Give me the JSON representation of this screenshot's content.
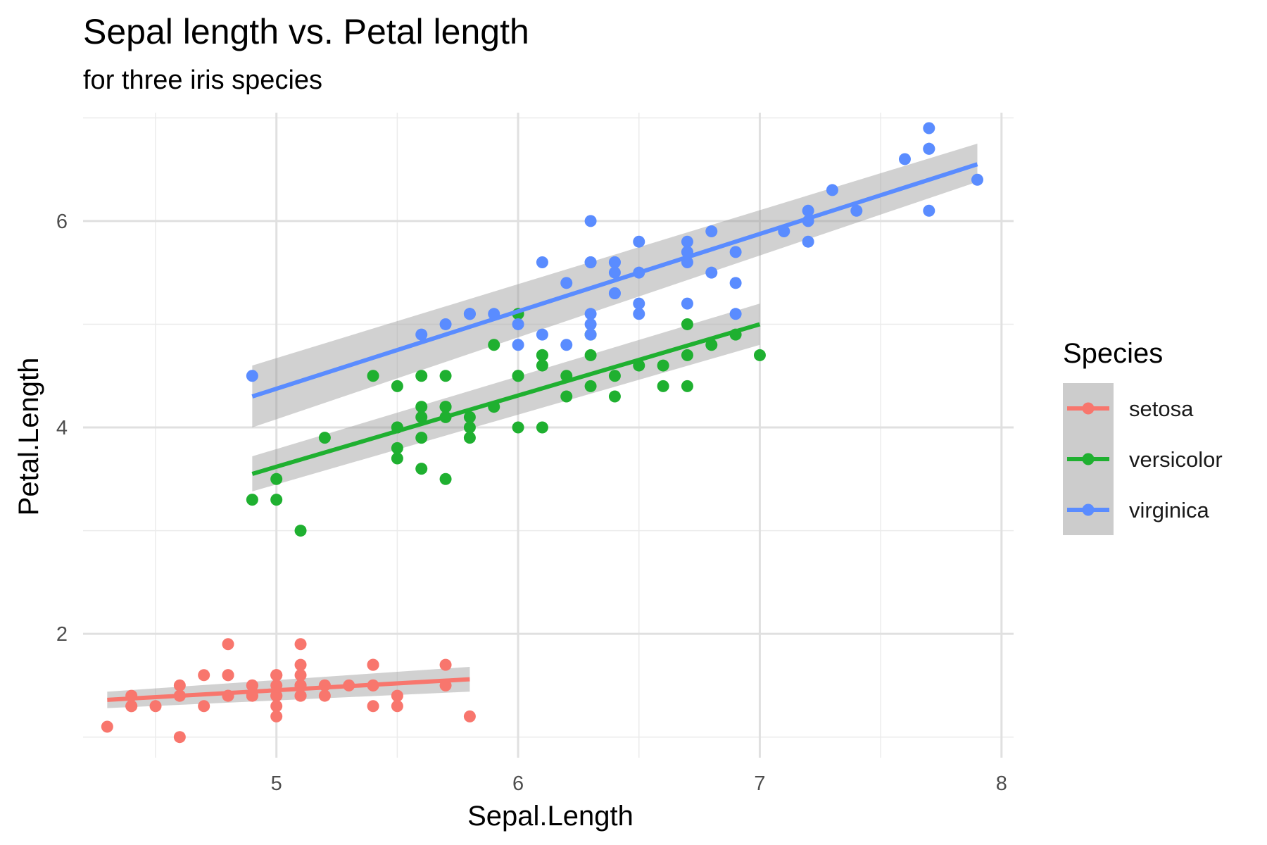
{
  "chart_data": {
    "type": "scatter",
    "title": "Sepal length vs. Petal length",
    "subtitle": "for three iris species",
    "xlabel": "Sepal.Length",
    "ylabel": "Petal.Length",
    "xlim": [
      4.2,
      8.05
    ],
    "ylim": [
      0.8,
      7.05
    ],
    "x_ticks": [
      5,
      6,
      7,
      8
    ],
    "x_tick_labels": [
      "5",
      "6",
      "7",
      "8"
    ],
    "y_ticks": [
      2,
      4,
      6
    ],
    "y_tick_labels": [
      "2",
      "4",
      "6"
    ],
    "x_minor_ticks": [
      4.5,
      5.5,
      6.5,
      7.5
    ],
    "y_minor_ticks": [
      1,
      3,
      5,
      7
    ],
    "grid": true,
    "legend_position": "right",
    "legend_title": "Species",
    "series": [
      {
        "name": "setosa",
        "color": "#f8766d",
        "x": [
          5.1,
          4.9,
          4.7,
          4.6,
          5.0,
          5.4,
          4.6,
          5.0,
          4.4,
          4.9,
          5.4,
          4.8,
          4.8,
          4.3,
          5.8,
          5.7,
          5.4,
          5.1,
          5.7,
          5.1,
          5.4,
          5.1,
          4.6,
          5.1,
          4.8,
          5.0,
          5.0,
          5.2,
          5.2,
          4.7,
          4.8,
          5.4,
          5.2,
          5.5,
          4.9,
          5.0,
          5.5,
          4.9,
          4.4,
          5.1,
          5.0,
          4.5,
          4.4,
          5.0,
          5.1,
          4.8,
          5.1,
          4.6,
          5.3,
          5.0
        ],
        "y": [
          1.4,
          1.4,
          1.3,
          1.5,
          1.4,
          1.7,
          1.4,
          1.5,
          1.4,
          1.5,
          1.5,
          1.6,
          1.4,
          1.1,
          1.2,
          1.5,
          1.3,
          1.4,
          1.7,
          1.5,
          1.7,
          1.5,
          1.0,
          1.7,
          1.9,
          1.6,
          1.6,
          1.5,
          1.4,
          1.6,
          1.6,
          1.5,
          1.5,
          1.4,
          1.5,
          1.2,
          1.3,
          1.4,
          1.3,
          1.5,
          1.3,
          1.3,
          1.3,
          1.6,
          1.9,
          1.4,
          1.6,
          1.4,
          1.5,
          1.4
        ],
        "fit": {
          "x": [
            4.3,
            5.8
          ],
          "y": [
            1.36,
            1.56
          ],
          "band_lower": [
            1.28,
            1.44
          ],
          "band_upper": [
            1.44,
            1.68
          ]
        }
      },
      {
        "name": "versicolor",
        "color": "#1fb030",
        "x": [
          7.0,
          6.4,
          6.9,
          5.5,
          6.5,
          5.7,
          6.3,
          4.9,
          6.6,
          5.2,
          5.0,
          5.9,
          6.0,
          6.1,
          5.6,
          6.7,
          5.6,
          5.8,
          6.2,
          5.6,
          5.9,
          6.1,
          6.3,
          6.1,
          6.4,
          6.6,
          6.8,
          6.7,
          6.0,
          5.7,
          5.5,
          5.5,
          5.8,
          6.0,
          5.4,
          6.0,
          6.7,
          6.3,
          5.6,
          5.5,
          5.5,
          6.1,
          5.8,
          5.0,
          5.6,
          5.7,
          5.7,
          6.2,
          5.1,
          5.7
        ],
        "y": [
          4.7,
          4.5,
          4.9,
          4.0,
          4.6,
          4.5,
          4.7,
          3.3,
          4.6,
          3.9,
          3.5,
          4.2,
          4.0,
          4.7,
          3.6,
          4.4,
          4.5,
          4.1,
          4.5,
          3.9,
          4.8,
          4.0,
          4.9,
          4.7,
          4.3,
          4.4,
          4.8,
          5.0,
          4.5,
          3.5,
          3.8,
          3.7,
          3.9,
          5.1,
          4.5,
          4.5,
          4.7,
          4.4,
          4.1,
          4.0,
          4.4,
          4.6,
          4.0,
          3.3,
          4.2,
          4.2,
          4.2,
          4.3,
          3.0,
          4.1
        ],
        "fit": {
          "x": [
            4.9,
            7.0
          ],
          "y": [
            3.55,
            5.0
          ],
          "band_lower": [
            3.38,
            4.8
          ],
          "band_upper": [
            3.72,
            5.2
          ]
        }
      },
      {
        "name": "virginica",
        "color": "#5a8cff",
        "x": [
          6.3,
          5.8,
          7.1,
          6.3,
          6.5,
          7.6,
          4.9,
          7.3,
          6.7,
          7.2,
          6.5,
          6.4,
          6.8,
          5.7,
          5.8,
          6.4,
          6.5,
          7.7,
          7.7,
          6.0,
          6.9,
          5.6,
          7.7,
          6.3,
          6.7,
          7.2,
          6.2,
          6.1,
          6.4,
          7.2,
          7.4,
          7.9,
          6.4,
          6.3,
          6.1,
          7.7,
          6.3,
          6.4,
          6.0,
          6.9,
          6.7,
          6.9,
          5.8,
          6.8,
          6.7,
          6.7,
          6.3,
          6.5,
          6.2,
          5.9
        ],
        "y": [
          6.0,
          5.1,
          5.9,
          5.6,
          5.8,
          6.6,
          4.5,
          6.3,
          5.8,
          6.1,
          5.1,
          5.3,
          5.5,
          5.0,
          5.1,
          5.3,
          5.5,
          6.7,
          6.9,
          5.0,
          5.7,
          4.9,
          6.7,
          4.9,
          5.7,
          6.0,
          4.8,
          4.9,
          5.6,
          5.8,
          6.1,
          6.4,
          5.6,
          5.1,
          5.6,
          6.1,
          5.6,
          5.5,
          4.8,
          5.4,
          5.6,
          5.1,
          5.1,
          5.9,
          5.7,
          5.2,
          5.0,
          5.2,
          5.4,
          5.1
        ],
        "fit": {
          "x": [
            4.9,
            7.9
          ],
          "y": [
            4.3,
            6.55
          ],
          "band_lower": [
            4.0,
            6.38
          ],
          "band_upper": [
            4.6,
            6.75
          ]
        }
      }
    ]
  }
}
